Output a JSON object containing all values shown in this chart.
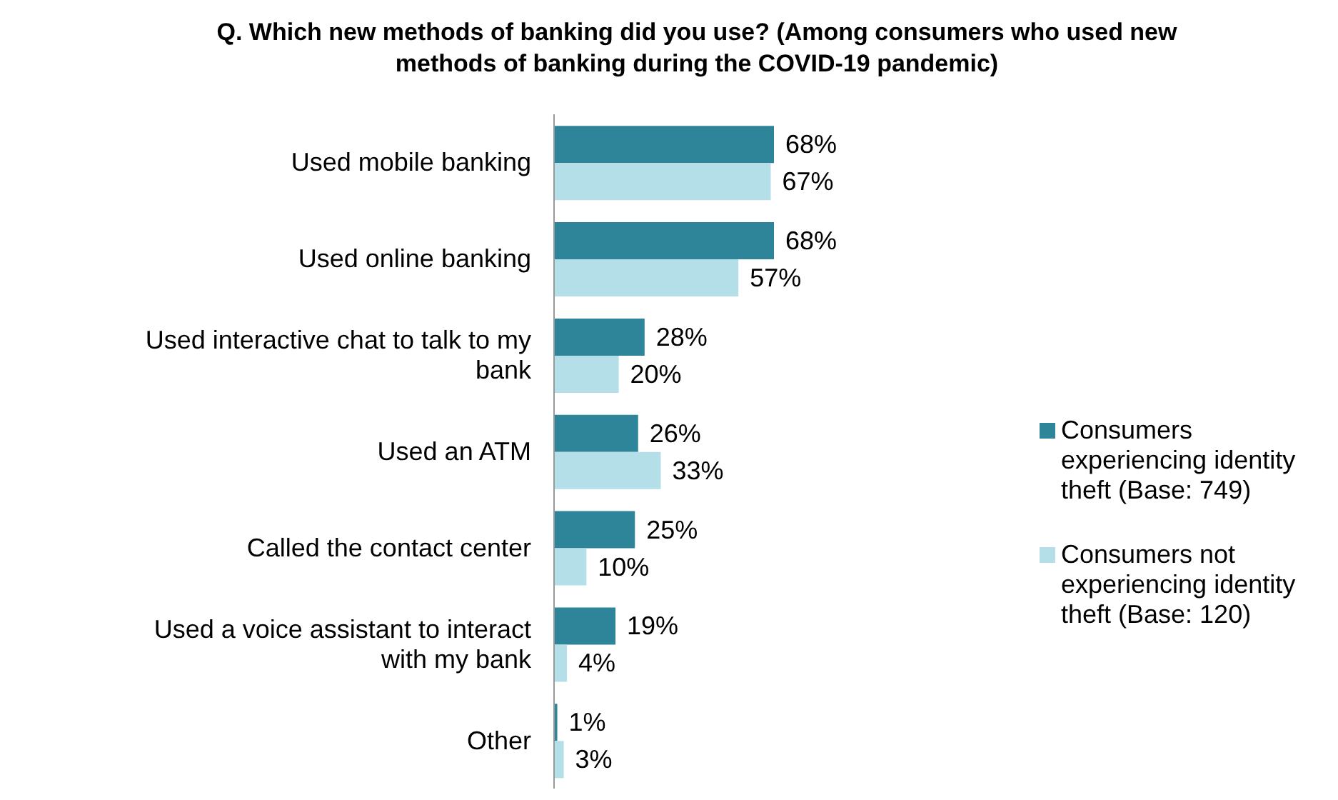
{
  "chart_data": {
    "type": "bar",
    "orientation": "horizontal",
    "title": "Q. Which new methods of banking did you use? (Among consumers who used new methods of banking during the COVID-19 pandemic)",
    "categories": [
      "Used mobile banking",
      "Used online banking",
      "Used interactive chat to talk to my bank",
      "Used an ATM",
      "Called the contact center",
      "Used a voice assistant to interact with my bank",
      "Other"
    ],
    "series": [
      {
        "name": "Consumers experiencing identity theft (Base: 749)",
        "color": "#2e8599",
        "values": [
          68,
          68,
          28,
          26,
          25,
          19,
          1
        ],
        "value_labels": [
          "68%",
          "68%",
          "28%",
          "26%",
          "25%",
          "19%",
          "1%"
        ]
      },
      {
        "name": "Consumers not experiencing identity theft (Base: 120)",
        "color": "#b5dfe8",
        "values": [
          67,
          57,
          20,
          33,
          10,
          4,
          3
        ],
        "value_labels": [
          "67%",
          "57%",
          "20%",
          "33%",
          "10%",
          "4%",
          "3%"
        ]
      }
    ],
    "legend": "right"
  }
}
